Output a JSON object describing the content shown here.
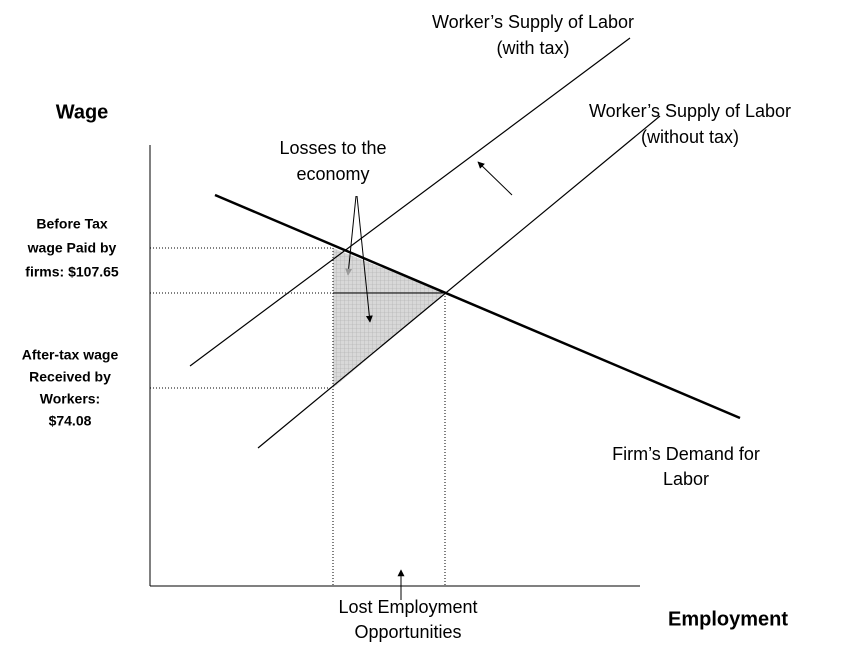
{
  "y_axis_label": "Wage",
  "x_axis_label": "Employment",
  "supply_with_tax": [
    "Worker’s Supply of Labor",
    "(with tax)"
  ],
  "supply_without_tax": [
    "Worker’s Supply of Labor",
    "(without tax)"
  ],
  "demand": [
    "Firm’s Demand for",
    "Labor"
  ],
  "losses": [
    "Losses to the",
    "economy"
  ],
  "before_tax_wage": [
    "Before Tax",
    "wage Paid by",
    "firms: $107.65"
  ],
  "after_tax_wage": [
    "After-tax wage",
    "Received by",
    "Workers:",
    "$74.08"
  ],
  "lost_employment": [
    "Lost Employment",
    "Opportunities"
  ]
}
